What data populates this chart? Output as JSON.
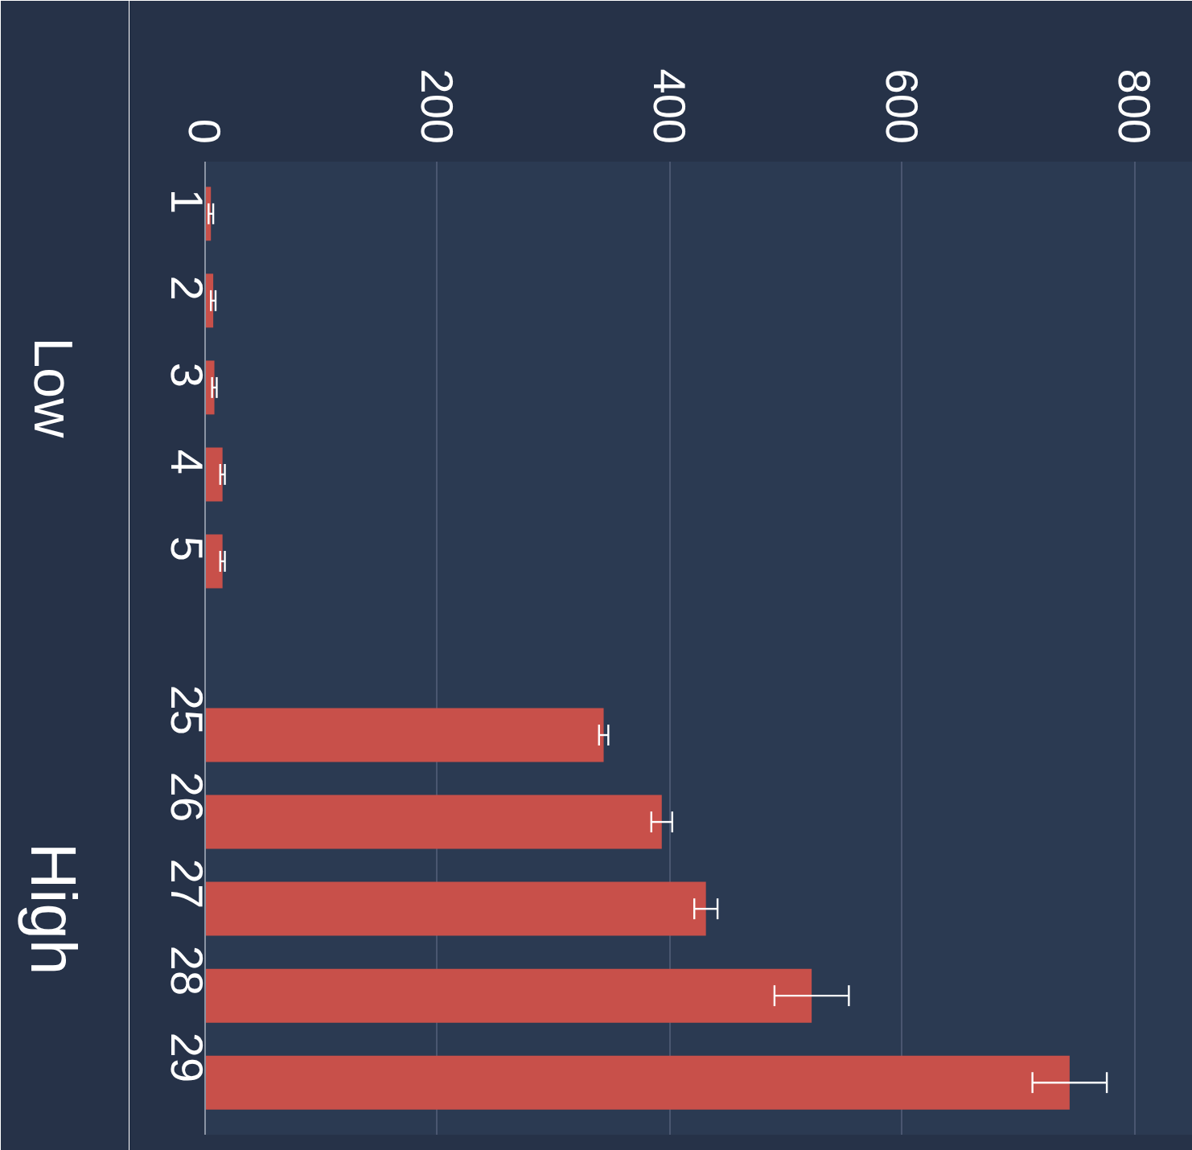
{
  "chart_data": {
    "type": "bar",
    "orientation": "horizontal",
    "categories": [
      "1",
      "2",
      "3",
      "4",
      "5",
      null,
      "25",
      "26",
      "27",
      "28",
      "29"
    ],
    "values": [
      5,
      7,
      8,
      15,
      15,
      null,
      343,
      393,
      431,
      522,
      744
    ],
    "errors": [
      2,
      2,
      2,
      2,
      2,
      null,
      4,
      9,
      10,
      32,
      32
    ],
    "color": "#c8504a",
    "xlim": [
      0,
      850
    ],
    "xticks": [
      0,
      200,
      400,
      600,
      800
    ],
    "grid": "x",
    "annotations": [
      "Low",
      "High"
    ]
  }
}
